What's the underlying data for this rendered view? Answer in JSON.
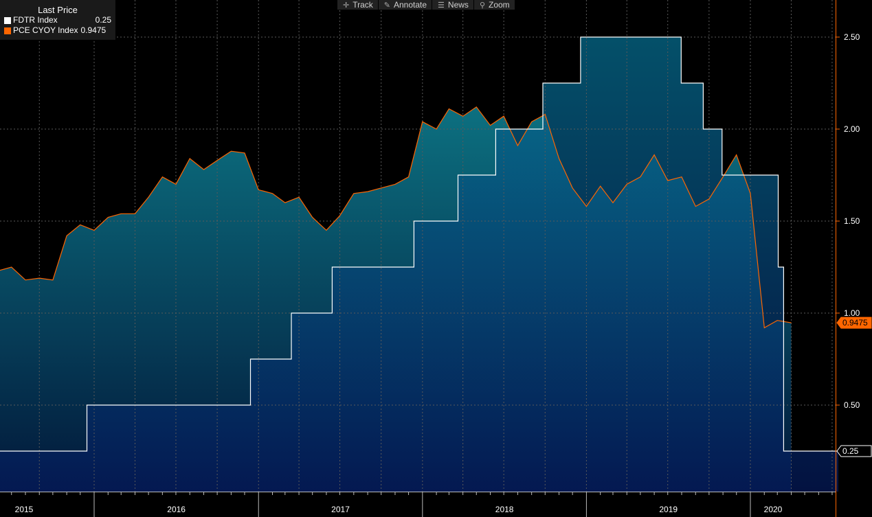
{
  "toolbar": {
    "track": "Track",
    "annotate": "Annotate",
    "news": "News",
    "zoom": "Zoom"
  },
  "legend": {
    "header": "Last Price",
    "series": [
      {
        "name": "FDTR Index",
        "value": "0.25",
        "color": "#ffffff"
      },
      {
        "name": "PCE CYOY Index",
        "value": "0.9475",
        "color": "#ff6600"
      }
    ]
  },
  "chart_data": {
    "type": "area",
    "ylim": [
      0,
      2.5
    ],
    "y_ticks": [
      "0.50",
      "1.00",
      "1.50",
      "2.00",
      "2.50"
    ],
    "x_labels": [
      "2015",
      "2016",
      "2017",
      "2018",
      "2019",
      "2020"
    ],
    "last_value_labels": {
      "fdtr": "0.25",
      "pce": "0.9475"
    },
    "grid": true,
    "series": [
      {
        "name": "FDTR Index",
        "color": "#ffffff",
        "step": true,
        "points": [
          [
            "2015-06-01",
            0.25
          ],
          [
            "2015-12-16",
            0.5
          ],
          [
            "2016-12-14",
            0.75
          ],
          [
            "2017-03-15",
            1.0
          ],
          [
            "2017-06-14",
            1.25
          ],
          [
            "2017-12-13",
            1.5
          ],
          [
            "2018-03-21",
            1.75
          ],
          [
            "2018-06-13",
            2.0
          ],
          [
            "2018-09-26",
            2.25
          ],
          [
            "2018-12-19",
            2.5
          ],
          [
            "2019-07-31",
            2.25
          ],
          [
            "2019-09-18",
            2.0
          ],
          [
            "2019-10-30",
            1.75
          ],
          [
            "2020-03-03",
            1.25
          ],
          [
            "2020-03-15",
            0.25
          ],
          [
            "2020-07-15",
            0.25
          ]
        ]
      },
      {
        "name": "PCE CYOY Index",
        "color": "#ff6600",
        "step": false,
        "points": [
          [
            "2015-06-01",
            1.23
          ],
          [
            "2015-07-01",
            1.25
          ],
          [
            "2015-08-01",
            1.18
          ],
          [
            "2015-09-01",
            1.19
          ],
          [
            "2015-10-01",
            1.18
          ],
          [
            "2015-11-01",
            1.42
          ],
          [
            "2015-12-01",
            1.48
          ],
          [
            "2016-01-01",
            1.45
          ],
          [
            "2016-02-01",
            1.52
          ],
          [
            "2016-03-01",
            1.54
          ],
          [
            "2016-04-01",
            1.54
          ],
          [
            "2016-05-01",
            1.63
          ],
          [
            "2016-06-01",
            1.74
          ],
          [
            "2016-07-01",
            1.7
          ],
          [
            "2016-08-01",
            1.84
          ],
          [
            "2016-09-01",
            1.78
          ],
          [
            "2016-10-01",
            1.83
          ],
          [
            "2016-11-01",
            1.88
          ],
          [
            "2016-12-01",
            1.87
          ],
          [
            "2017-01-01",
            1.67
          ],
          [
            "2017-02-01",
            1.65
          ],
          [
            "2017-03-01",
            1.6
          ],
          [
            "2017-04-01",
            1.63
          ],
          [
            "2017-05-01",
            1.52
          ],
          [
            "2017-06-01",
            1.45
          ],
          [
            "2017-07-01",
            1.53
          ],
          [
            "2017-08-01",
            1.65
          ],
          [
            "2017-09-01",
            1.66
          ],
          [
            "2017-10-01",
            1.68
          ],
          [
            "2017-11-01",
            1.7
          ],
          [
            "2017-12-01",
            1.74
          ],
          [
            "2018-01-01",
            2.04
          ],
          [
            "2018-02-01",
            2.0
          ],
          [
            "2018-03-01",
            2.11
          ],
          [
            "2018-04-01",
            2.07
          ],
          [
            "2018-05-01",
            2.12
          ],
          [
            "2018-06-01",
            2.02
          ],
          [
            "2018-07-01",
            2.07
          ],
          [
            "2018-08-01",
            1.91
          ],
          [
            "2018-09-01",
            2.04
          ],
          [
            "2018-10-01",
            2.08
          ],
          [
            "2018-11-01",
            1.84
          ],
          [
            "2018-12-01",
            1.68
          ],
          [
            "2019-01-01",
            1.58
          ],
          [
            "2019-02-01",
            1.69
          ],
          [
            "2019-03-01",
            1.6
          ],
          [
            "2019-04-01",
            1.7
          ],
          [
            "2019-05-01",
            1.74
          ],
          [
            "2019-06-01",
            1.86
          ],
          [
            "2019-07-01",
            1.72
          ],
          [
            "2019-08-01",
            1.74
          ],
          [
            "2019-09-01",
            1.58
          ],
          [
            "2019-10-01",
            1.62
          ],
          [
            "2019-11-01",
            1.74
          ],
          [
            "2019-12-01",
            1.86
          ],
          [
            "2020-01-01",
            1.65
          ],
          [
            "2020-02-01",
            0.92
          ],
          [
            "2020-03-01",
            0.96
          ],
          [
            "2020-04-01",
            0.9475
          ]
        ]
      }
    ]
  }
}
